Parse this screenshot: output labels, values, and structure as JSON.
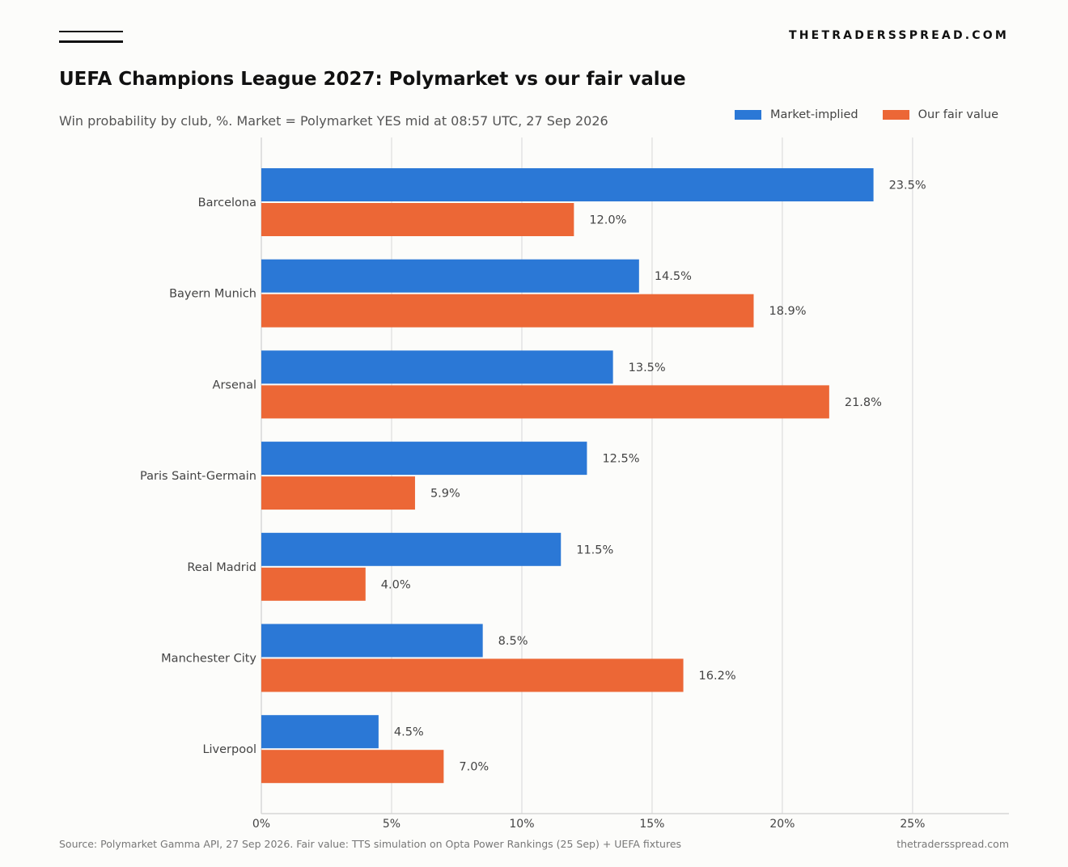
{
  "header": {
    "brand": "THETRADERSSPREAD.COM"
  },
  "colors": {
    "market": "#2b78d6",
    "fair": "#ec6736",
    "grid": "#e3e3e3"
  },
  "chart_data": {
    "type": "bar",
    "orientation": "horizontal",
    "title": "UEFA Champions League 2027: Polymarket vs our fair value",
    "subtitle": "Win probability by club, %. Market = Polymarket YES mid at 08:57 UTC, 27 Sep 2026",
    "categories": [
      "Barcelona",
      "Bayern Munich",
      "Arsenal",
      "Paris Saint-Germain",
      "Real Madrid",
      "Manchester City",
      "Liverpool"
    ],
    "series": [
      {
        "name": "Market-implied",
        "values": [
          23.5,
          14.5,
          13.5,
          12.5,
          11.5,
          8.5,
          4.5
        ]
      },
      {
        "name": "Our fair value",
        "values": [
          12.0,
          18.9,
          21.8,
          5.9,
          4.0,
          16.2,
          7.0
        ]
      }
    ],
    "xlim": [
      0,
      28.7
    ],
    "xticks": [
      0,
      5,
      10,
      15,
      20,
      25
    ],
    "tick_suffix": "%",
    "value_label_decimals": 1,
    "grid": "vertical",
    "legend": "top-right"
  },
  "footer": {
    "source": "Source: Polymarket Gamma API, 27 Sep 2026. Fair value: TTS simulation on Opta Power Rankings (25 Sep) + UEFA fixtures",
    "site": "thetradersspread.com"
  }
}
